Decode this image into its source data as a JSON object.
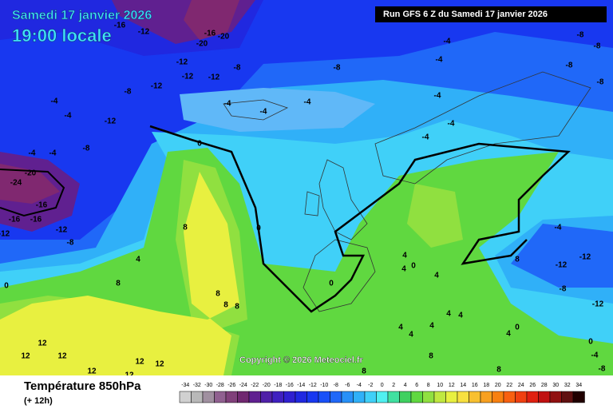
{
  "header": {
    "date": "Samedi 17 janvier 2026",
    "time": "19:00 locale",
    "run": "Run GFS 6 Z du Samedi 17 janvier 2026"
  },
  "copyright": "Copyright © 2026 Meteociel.fr",
  "legend": {
    "title": "Température 850hPa",
    "subtitle": "(+ 12h)",
    "scale": [
      -34,
      -32,
      -30,
      -28,
      -26,
      -24,
      -22,
      -20,
      -18,
      -16,
      -14,
      -12,
      -10,
      -8,
      -6,
      -4,
      -2,
      0,
      2,
      4,
      6,
      8,
      10,
      12,
      14,
      16,
      18,
      20,
      22,
      24,
      26,
      28,
      30,
      32,
      34
    ],
    "colors": [
      "#d0d0d0",
      "#b8b8b8",
      "#a090a0",
      "#906090",
      "#80407a",
      "#702870",
      "#602090",
      "#5020a8",
      "#4020c0",
      "#3020d0",
      "#2028e0",
      "#1838f0",
      "#1850f8",
      "#2068f8",
      "#2890f8",
      "#30b0f8",
      "#40d0f8",
      "#50f0f0",
      "#40e0a0",
      "#40d060",
      "#60d840",
      "#90e040",
      "#c0e840",
      "#e8f040",
      "#f8e040",
      "#f8c030",
      "#f8a020",
      "#f88010",
      "#f86010",
      "#f04010",
      "#e02010",
      "#c01010",
      "#901010",
      "#601010",
      "#200000"
    ]
  },
  "contour_labels": [
    -16,
    -12,
    -16,
    -20,
    -20,
    -12,
    -12,
    -12,
    -8,
    -8,
    -12,
    -8,
    -4,
    -4,
    -4,
    -4,
    -12,
    -4,
    -4,
    -4,
    -8,
    0,
    -20,
    -24,
    -16,
    -16,
    -16,
    -12,
    -8,
    -12,
    0,
    4,
    8,
    8,
    0,
    8,
    8,
    8,
    0,
    12,
    12,
    12,
    12,
    12,
    12,
    -4,
    -4,
    -8,
    -8,
    -8,
    -4,
    -4,
    -4,
    -8,
    -4,
    -12,
    -12,
    8,
    -8,
    -12,
    0,
    4,
    4,
    4,
    4,
    4,
    0,
    4,
    4,
    4,
    8,
    8,
    -4,
    -8,
    0,
    4,
    8,
    12
  ]
}
